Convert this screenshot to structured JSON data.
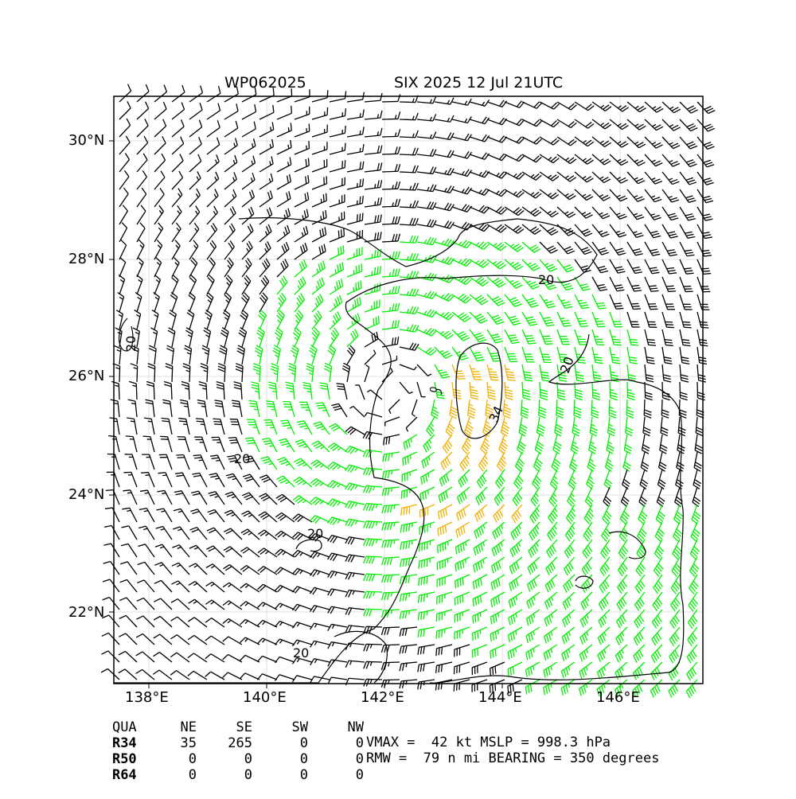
{
  "title": {
    "storm_id": "WP062025",
    "name_time": "SIX 2025 12 Jul 21UTC"
  },
  "axes": {
    "lat_labels": [
      "30°N",
      "28°N",
      "26°N",
      "24°N",
      "22°N"
    ],
    "lon_labels": [
      "138°E",
      "140°E",
      "142°E",
      "144°E",
      "146°E"
    ]
  },
  "contour_labels": [
    "20",
    "20",
    "20",
    "20",
    "20",
    "20",
    "34",
    "0"
  ],
  "colors": {
    "below_34": "#000000",
    "r34": "#00ee00",
    "r50": "#f0b000",
    "contour": "#000000"
  },
  "wind_radii_table": {
    "header": [
      "QUA",
      "NE",
      "SE",
      "SW",
      "NW"
    ],
    "rows": [
      {
        "label": "R34",
        "values": [
          "35",
          "265",
          "0",
          "0"
        ]
      },
      {
        "label": "R50",
        "values": [
          "0",
          "0",
          "0",
          "0"
        ]
      },
      {
        "label": "R64",
        "values": [
          "0",
          "0",
          "0",
          "0"
        ]
      }
    ]
  },
  "stats": {
    "line1": "VMAX =  42 kt MSLP = 998.3 hPa",
    "line2": "RMW =  79 n mi BEARING = 350 degrees"
  }
}
